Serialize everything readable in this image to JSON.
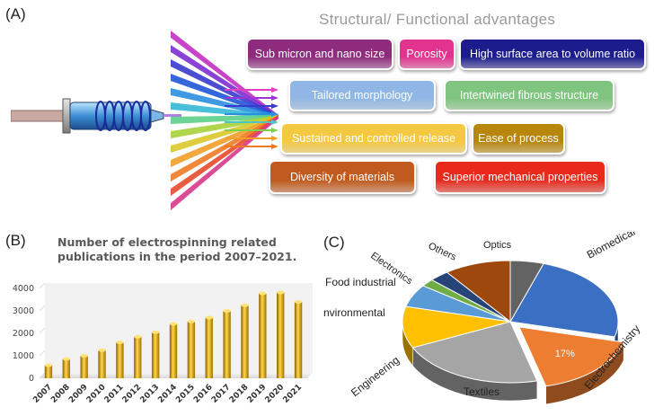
{
  "panel_labels": {
    "a": "(A)",
    "b": "(B)",
    "c": "(C)"
  },
  "advantages": {
    "title": "Structural/ Functional advantages",
    "items": [
      {
        "label": "Sub micron and nano size",
        "color": "#8e2b7c"
      },
      {
        "label": "Porosity",
        "color": "#e2338f"
      },
      {
        "label": "High surface area to volume ratio",
        "color": "#1c1c8c"
      },
      {
        "label": "Tailored morphology",
        "color": "#8fb6e4"
      },
      {
        "label": "Intertwined fibrous structure",
        "color": "#7fc47f"
      },
      {
        "label": "Sustained and controlled release",
        "color": "#f5c842"
      },
      {
        "label": "Ease of process",
        "color": "#b8860b"
      },
      {
        "label": "Diversity of materials",
        "color": "#c05a1e"
      },
      {
        "label": "Superior mechanical properties",
        "color": "#e8291c"
      }
    ]
  },
  "chart_data": [
    {
      "type": "bar",
      "title": "Number of electrospinning related publications in the period 2007–2021.",
      "title_lines": [
        "Number of electrospinning related",
        "publications in the period 2007–2021."
      ],
      "categories": [
        "2007",
        "2008",
        "2009",
        "2010",
        "2011",
        "2012",
        "2013",
        "2014",
        "2015",
        "2016",
        "2017",
        "2018",
        "2019",
        "2020",
        "2021"
      ],
      "values": [
        580,
        860,
        1000,
        1250,
        1600,
        1850,
        2050,
        2420,
        2530,
        2700,
        3000,
        3250,
        3780,
        3820,
        3400
      ],
      "yticks": [
        0,
        1000,
        2000,
        3000,
        4000
      ],
      "ylim": [
        0,
        4000
      ],
      "bar_color": "#e8b20e"
    },
    {
      "type": "pie",
      "slices": [
        {
          "label": "Biomedical",
          "value": 24,
          "color": "#3a6fc4"
        },
        {
          "label": "Electrochemistry",
          "value": 17,
          "color": "#ed7d31",
          "data_label": "17%"
        },
        {
          "label": "Textiles",
          "value": 22,
          "color": "#a5a5a5"
        },
        {
          "label": "Engineering",
          "value": 11,
          "color": "#ffc000"
        },
        {
          "label": "Environmental",
          "value": 6,
          "color": "#5b9bd5"
        },
        {
          "label": "Food industrial",
          "value": 2,
          "color": "#70ad47"
        },
        {
          "label": "Electronics",
          "value": 3,
          "color": "#264478"
        },
        {
          "label": "Others",
          "value": 10,
          "color": "#9e480e"
        },
        {
          "label": "Optics",
          "value": 5,
          "color": "#636363"
        }
      ]
    }
  ]
}
